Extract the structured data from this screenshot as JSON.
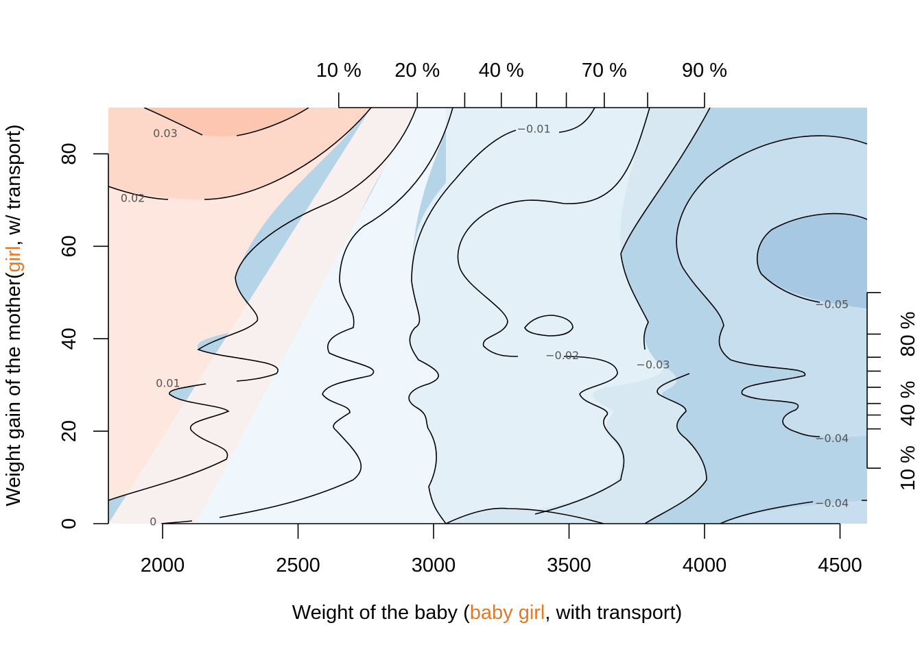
{
  "chart_data": {
    "type": "contour",
    "x_axis": {
      "title_parts": [
        {
          "text": "Weight of the baby (",
          "color": "#000000"
        },
        {
          "text": "baby girl",
          "color": "#E87722"
        },
        {
          "text": ", with transport)",
          "color": "#000000"
        }
      ],
      "ticks": [
        2000,
        2500,
        3000,
        3500,
        4000,
        4500
      ],
      "range": [
        1800,
        4600
      ]
    },
    "y_axis": {
      "title_parts": [
        {
          "text": "Weight gain of the mother(",
          "color": "#000000"
        },
        {
          "text": "girl",
          "color": "#E87722"
        },
        {
          "text": ", w/ transport)",
          "color": "#000000"
        }
      ],
      "ticks": [
        0,
        20,
        40,
        60,
        80
      ],
      "range": [
        0,
        90
      ]
    },
    "top_quantile_axis": {
      "positions": [
        2650,
        2940,
        3115,
        3250,
        3380,
        3490,
        3630,
        3790,
        4000
      ],
      "labels": [
        {
          "text": "10 %",
          "x": 2650
        },
        {
          "text": "20 %",
          "x": 2940
        },
        {
          "text": "40 %",
          "x": 3250
        },
        {
          "text": "70 %",
          "x": 3630
        },
        {
          "text": "90 %",
          "x": 4000
        }
      ]
    },
    "right_quantile_axis": {
      "positions": [
        12,
        20.5,
        23.5,
        26,
        29.5,
        33,
        36,
        41,
        50
      ],
      "labels": [
        {
          "text": "10 %",
          "y": 12
        },
        {
          "text": "40 %",
          "y": 26
        },
        {
          "text": "80 %",
          "y": 41
        }
      ]
    },
    "contour_labels": [
      {
        "text": "0.03",
        "x": 2010,
        "y": 84.5
      },
      {
        "text": "0.02",
        "x": 1890,
        "y": 70.5
      },
      {
        "text": "0.01",
        "x": 2020,
        "y": 30.5
      },
      {
        "text": "0",
        "x": 1965,
        "y": 0.5
      },
      {
        "text": "−0.01",
        "x": 3370,
        "y": 85.5
      },
      {
        "text": "−0.02",
        "x": 3475,
        "y": 36.5
      },
      {
        "text": "−0.03",
        "x": 3810,
        "y": 34.5
      },
      {
        "text": "−0.05",
        "x": 4470,
        "y": 47.5
      },
      {
        "text": "−0.04",
        "x": 4470,
        "y": 18.5
      },
      {
        "text": "−0.04",
        "x": 4470,
        "y": 4.5
      }
    ],
    "colors": {
      "pos_03": "#FCC6B0",
      "pos_02": "#FDD8C9",
      "pos_01": "#FEE7DE",
      "zero": "#F8F0EE",
      "neg_01": "#EFF6FC",
      "neg_02": "#E3F0F8",
      "neg_03": "#D7E8F3",
      "neg_04": "#C7DEEE",
      "neg_05": "#B6D4E8",
      "neg_06": "#A6C8E2",
      "accent": "#E87722"
    }
  }
}
